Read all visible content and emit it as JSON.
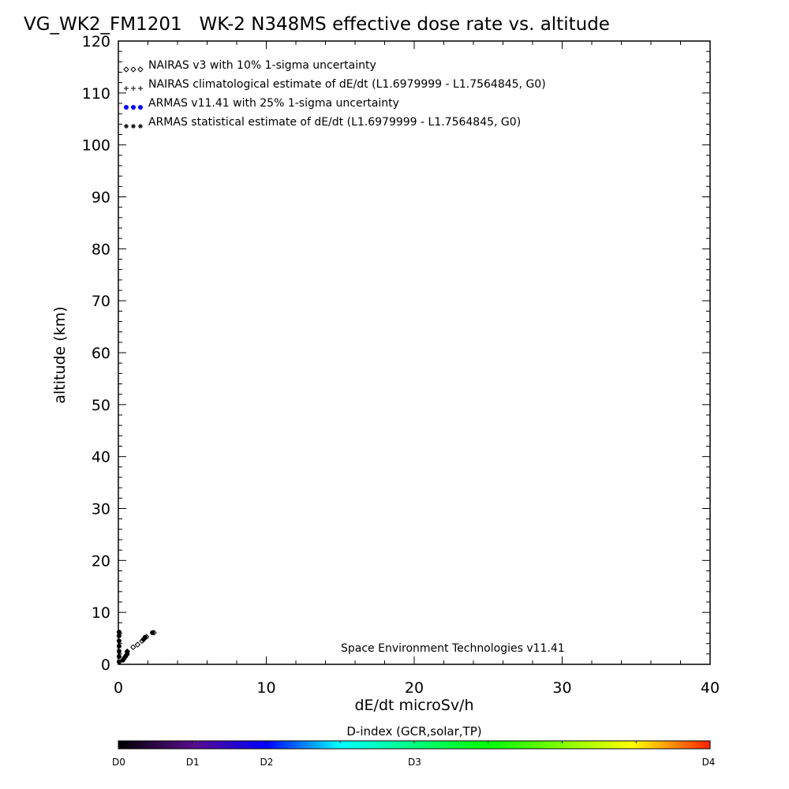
{
  "chart_data": {
    "type": "scatter",
    "title": "VG_WK2_FM1201   WK-2 N348MS effective dose rate vs. altitude",
    "xlabel": "dE/dt microSv/h",
    "ylabel": "altitude (km)",
    "xlim": [
      0,
      40
    ],
    "ylim": [
      0,
      120
    ],
    "xticks": [
      "0",
      "10",
      "20",
      "30",
      "40"
    ],
    "yticks": [
      "0",
      "10",
      "20",
      "30",
      "40",
      "50",
      "60",
      "70",
      "80",
      "90",
      "100",
      "110",
      "120"
    ],
    "grid": false,
    "legend_position": "top-left",
    "annotation": "Space Environment Technologies v11.41",
    "series": [
      {
        "name": "NAIRAS v3 with 10% 1-sigma uncertainty",
        "marker": "diamond",
        "color": "#000000",
        "points": [
          [
            1.0,
            3.3
          ],
          [
            1.3,
            3.8
          ],
          [
            1.6,
            4.5
          ],
          [
            1.9,
            5.3
          ],
          [
            2.4,
            6.1
          ],
          [
            0.6,
            2.5
          ]
        ]
      },
      {
        "name": "NAIRAS climatological estimate of dE/dt (L1.6979999 - L1.7564845, G0)",
        "marker": "plus",
        "color": "#000000",
        "points": []
      },
      {
        "name": "ARMAS v11.41 with 25% 1-sigma uncertainty",
        "marker": "filled-circle",
        "color": "#0000ff",
        "points": [
          [
            0.05,
            0.5
          ],
          [
            0.05,
            1.5
          ],
          [
            0.05,
            2.5
          ],
          [
            0.05,
            3.5
          ],
          [
            0.05,
            4.5
          ],
          [
            0.05,
            5.5
          ],
          [
            0.05,
            6.2
          ],
          [
            0.3,
            0.8
          ],
          [
            0.4,
            1.2
          ],
          [
            0.5,
            1.6
          ],
          [
            0.6,
            2.0
          ],
          [
            0.6,
            2.4
          ],
          [
            1.7,
            4.8
          ],
          [
            1.8,
            5.2
          ],
          [
            2.3,
            6.1
          ]
        ]
      },
      {
        "name": "ARMAS statistical estimate of dE/dt (L1.6979999 - L1.7564845, G0)",
        "marker": "asterisk",
        "color": "#000000",
        "points": []
      }
    ],
    "colorbar": {
      "title": "D-index (GCR,solar,TP)",
      "labels": [
        {
          "text": "D0",
          "value": 0
        },
        {
          "text": "D1",
          "value": 0.125
        },
        {
          "text": "D2",
          "value": 0.25
        },
        {
          "text": "D3",
          "value": 0.5
        },
        {
          "text": "D4",
          "value": 1
        }
      ],
      "colors": [
        "#000000",
        "#6a0a9a",
        "#0000ff",
        "#00ffff",
        "#00ff00",
        "#ffff00",
        "#ff0000"
      ]
    }
  }
}
